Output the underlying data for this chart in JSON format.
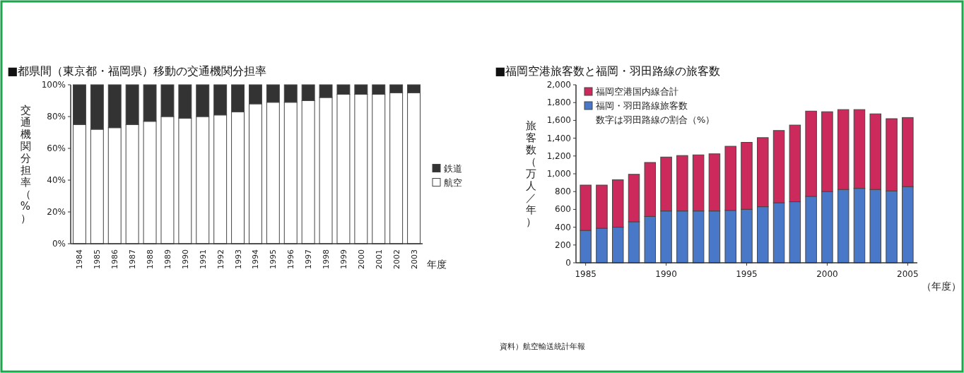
{
  "chart_data": [
    {
      "type": "bar",
      "title": "■都県間（東京都・福岡県）移動の交通機関分担率",
      "xlabel": "年度",
      "ylabel": "交通機関分担率（%）",
      "stacked": true,
      "legend": "right",
      "categories": [
        "1984",
        "1985",
        "1986",
        "1987",
        "1988",
        "1989",
        "1990",
        "1991",
        "1992",
        "1993",
        "1994",
        "1995",
        "1996",
        "1997",
        "1998",
        "1999",
        "2000",
        "2001",
        "2002",
        "2003"
      ],
      "series": [
        {
          "name": "航空",
          "color": "#ffffff",
          "values": [
            75,
            72,
            73,
            75,
            77,
            80,
            79,
            80,
            81,
            83,
            88,
            89,
            89,
            90,
            92,
            94,
            94,
            94,
            95,
            95
          ]
        },
        {
          "name": "鉄道",
          "color": "#333333",
          "values": [
            25,
            28,
            27,
            25,
            23,
            20,
            21,
            20,
            19,
            17,
            12,
            11,
            11,
            10,
            8,
            6,
            6,
            6,
            5,
            5
          ]
        }
      ],
      "ylim": [
        0,
        100
      ],
      "yticks": [
        {
          "value": 0,
          "label": "0%"
        },
        {
          "value": 20,
          "label": "20%"
        },
        {
          "value": 40,
          "label": "40%"
        },
        {
          "value": 60,
          "label": "60%"
        },
        {
          "value": 80,
          "label": "80%"
        },
        {
          "value": 100,
          "label": "100%"
        }
      ]
    },
    {
      "type": "bar",
      "title": "■福岡空港旅客数と福岡・羽田路線の旅客数",
      "xlabel": "（年度）",
      "ylabel": "旅客数（万人／年）",
      "stacked": true,
      "legend": "top left",
      "x": [
        1985,
        1986,
        1987,
        1988,
        1989,
        1990,
        1991,
        1992,
        1993,
        1994,
        1995,
        1996,
        1997,
        1998,
        1999,
        2000,
        2001,
        2002,
        2003,
        2004,
        2005
      ],
      "series": [
        {
          "name": "福岡・羽田路線旅客数",
          "color": "#4a78c8",
          "values": [
            364,
            388,
            400,
            461,
            521,
            582,
            582,
            582,
            582,
            589,
            601,
            630,
            674,
            686,
            747,
            800,
            824,
            836,
            824,
            807,
            856
          ]
        },
        {
          "name": "福岡空港国内線合計",
          "color": "#cc2a5c",
          "values": [
            509,
            485,
            533,
            533,
            606,
            606,
            623,
            630,
            642,
            720,
            752,
            776,
            812,
            861,
            957,
            897,
            897,
            885,
            849,
            812,
            776
          ]
        }
      ],
      "xlim": [
        1984.4,
        2005.6
      ],
      "xticks": [
        1985,
        1990,
        1995,
        2000,
        2005
      ],
      "ylim": [
        0,
        2000
      ],
      "yticks": [
        0,
        200,
        400,
        600,
        800,
        {
          "value": 1000,
          "label": "1,000"
        },
        {
          "value": 1200,
          "label": "1,200"
        },
        {
          "value": 1400,
          "label": "1,400"
        },
        {
          "value": 1600,
          "label": "1,600"
        },
        {
          "value": 1800,
          "label": "1,800"
        },
        {
          "value": 2000,
          "label": "2,000"
        }
      ],
      "annotations": [
        "数字は羽田路線の割合（%）",
        "資料）航空輸送統計年報"
      ]
    }
  ]
}
